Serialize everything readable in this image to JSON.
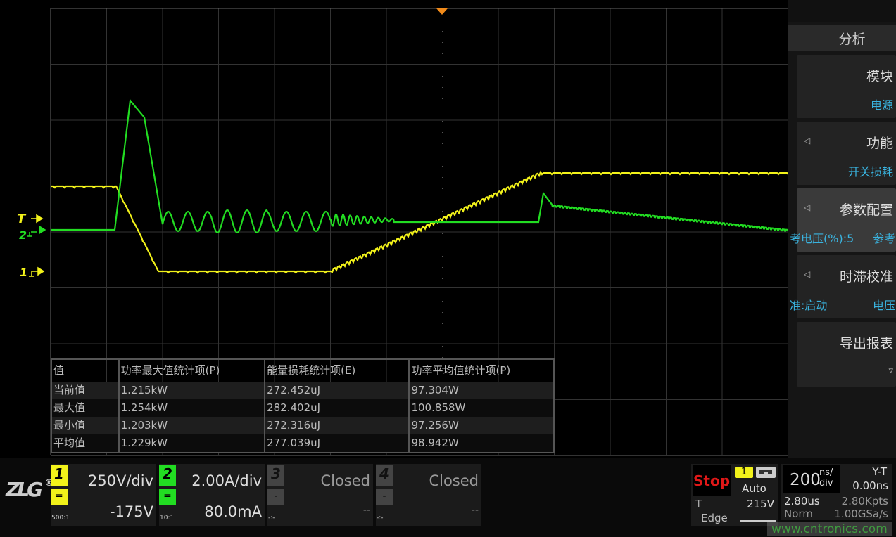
{
  "colors": {
    "ch1": "#f2f21a",
    "ch2": "#22dd22",
    "accent": "#3ab4e0",
    "trigger_marker": "#f08a1a",
    "stop": "#e01818"
  },
  "markers": {
    "trigger": "T",
    "ch2": "2",
    "ch1": "1"
  },
  "panel": {
    "title": "分析",
    "items": [
      {
        "label": "模块",
        "value": "电源",
        "has_arrow": false
      },
      {
        "label": "功能",
        "value": "开关损耗",
        "has_arrow": true
      },
      {
        "label": "参数配置",
        "value_left": "考电压(%):5",
        "value_right": "参考",
        "has_arrow": true,
        "selected": true
      },
      {
        "label": "时滞校准",
        "value_left": "准:启动",
        "value_right": "电压",
        "has_arrow": true
      },
      {
        "label": "导出报表",
        "value": "▿",
        "has_arrow": false
      }
    ]
  },
  "stats_table": {
    "headers": [
      "值",
      "功率最大值统计项(P)",
      "能量损耗统计项(E)",
      "功率平均值统计项(P)"
    ],
    "rows": [
      [
        "当前值",
        "1.215kW",
        "272.452uJ",
        "97.304W"
      ],
      [
        "最大值",
        "1.254kW",
        "282.402uJ",
        "100.858W"
      ],
      [
        "最小值",
        "1.203kW",
        "272.316uJ",
        "97.256W"
      ],
      [
        "平均值",
        "1.229kW",
        "277.039uJ",
        "98.942W"
      ]
    ]
  },
  "logo": {
    "text": "ZLG",
    "mark": "®"
  },
  "channels": [
    {
      "num": "1",
      "scale": "250V/div",
      "offset": "-175V",
      "probe": "500:1",
      "coupling": "DC",
      "color": "#f2f21a"
    },
    {
      "num": "2",
      "scale": "2.00A/div",
      "offset": "80.0mA",
      "probe": "10:1",
      "coupling": "DC",
      "color": "#22dd22"
    },
    {
      "num": "3",
      "scale": "Closed",
      "offset": "--",
      "probe": "-:-",
      "coupling": "-",
      "color": "#444"
    },
    {
      "num": "4",
      "scale": "Closed",
      "offset": "--",
      "probe": "-:-",
      "coupling": "-",
      "color": "#444"
    }
  ],
  "trigger": {
    "state": "Stop",
    "source": "1",
    "coupling": "DC",
    "mode": "Auto",
    "label": "T",
    "level": "215V",
    "type": "Edge",
    "slope": "rising"
  },
  "timebase": {
    "value": "200",
    "unit_top": "ns/",
    "unit_bottom": "div",
    "mode": "Y-T",
    "delay": "0.00ns",
    "record_time": "2.80us",
    "points": "2.80Kpts",
    "acq": "Norm",
    "sample_rate": "1.00GSa/s"
  },
  "watermark": "www.cntronics.com"
}
